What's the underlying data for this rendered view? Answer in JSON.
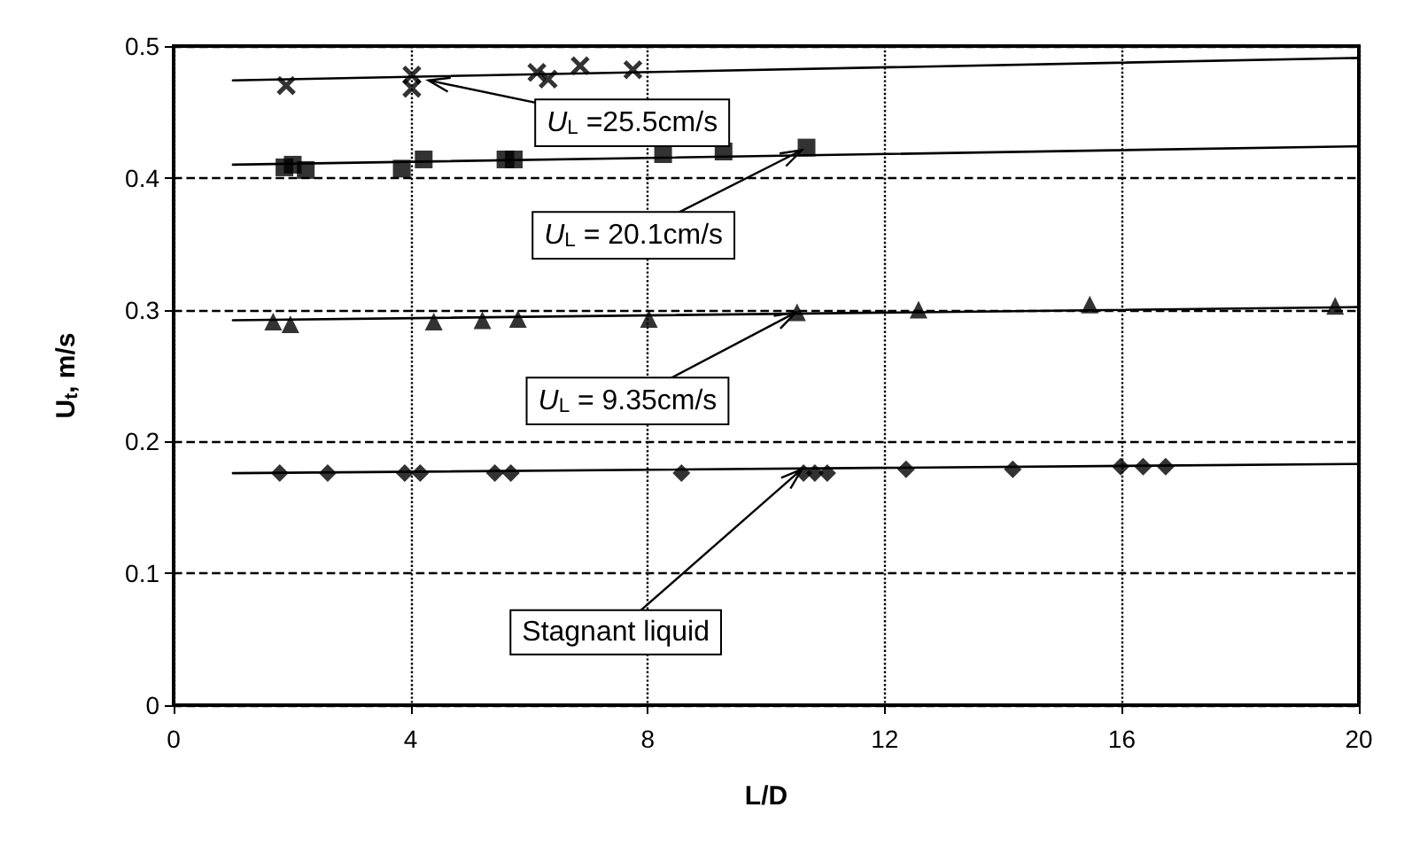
{
  "chart_data": {
    "type": "scatter",
    "xlabel": "L/D",
    "ylabel": "U$_{t}$, m/s",
    "xlim": [
      0,
      20
    ],
    "xticks": [
      0,
      4,
      8,
      12,
      16,
      20
    ],
    "ylim": [
      0,
      0.5
    ],
    "yticks": [
      0,
      0.1,
      0.2,
      0.3,
      0.4,
      0.5
    ],
    "grid": true,
    "series": [
      {
        "color": "#000000",
        "marker": "cross",
        "x": [
          1.9,
          4.02,
          4.02,
          6.13,
          6.32,
          6.86,
          7.75
        ],
        "values": [
          0.47,
          0.478,
          0.468,
          0.48,
          0.475,
          0.485,
          0.482
        ]
      },
      {
        "color": "#000000",
        "marker": "square",
        "x": [
          1.87,
          2.01,
          2.23,
          3.85,
          4.22,
          5.6,
          5.74,
          8.26,
          9.28,
          10.68
        ],
        "values": [
          0.408,
          0.41,
          0.406,
          0.407,
          0.414,
          0.414,
          0.414,
          0.418,
          0.42,
          0.423
        ]
      },
      {
        "color": "#000000",
        "marker": "triangle",
        "x": [
          1.68,
          1.97,
          4.39,
          5.21,
          5.81,
          8.02,
          10.52,
          12.57,
          15.46,
          19.6
        ],
        "values": [
          0.291,
          0.289,
          0.291,
          0.292,
          0.293,
          0.293,
          0.298,
          0.3,
          0.304,
          0.303
        ]
      },
      {
        "color": "#000000",
        "marker": "diamond",
        "x": [
          1.79,
          2.6,
          3.9,
          4.16,
          5.42,
          5.69,
          8.57,
          10.63,
          10.82,
          11.03,
          12.36,
          14.16,
          15.98,
          16.36,
          16.74
        ],
        "values": [
          0.176,
          0.176,
          0.176,
          0.176,
          0.176,
          0.176,
          0.176,
          0.176,
          0.176,
          0.176,
          0.179,
          0.179,
          0.181,
          0.181,
          0.181
        ]
      },
      {
        "type": "line",
        "color": "#000000",
        "marker": "none",
        "line_style": "solid",
        "x": [
          1,
          20
        ],
        "values": [
          0.474,
          0.491
        ]
      },
      {
        "type": "line",
        "color": "#000000",
        "marker": "none",
        "line_style": "solid",
        "x": [
          1,
          20
        ],
        "values": [
          0.41,
          0.424
        ]
      },
      {
        "type": "line",
        "color": "#000000",
        "marker": "none",
        "line_style": "solid",
        "x": [
          1,
          20
        ],
        "values": [
          0.292,
          0.302
        ]
      },
      {
        "type": "line",
        "color": "#000000",
        "marker": "none",
        "line_style": "solid",
        "x": [
          1,
          20
        ],
        "values": [
          0.176,
          0.183
        ]
      }
    ],
    "annotations": [
      {
        "text": "U$_{L}$ =25.5cm/s",
        "x": 4.3,
        "y": 0.474
      },
      {
        "text": "U$_{L}$ = 20.1cm/s",
        "x": 10.6,
        "y": 0.421
      },
      {
        "text": "U$_{L}$ = 9.35cm/s",
        "x": 10.5,
        "y": 0.298
      },
      {
        "text": "Stagnant liquid",
        "x": 10.6,
        "y": 0.179
      }
    ]
  }
}
